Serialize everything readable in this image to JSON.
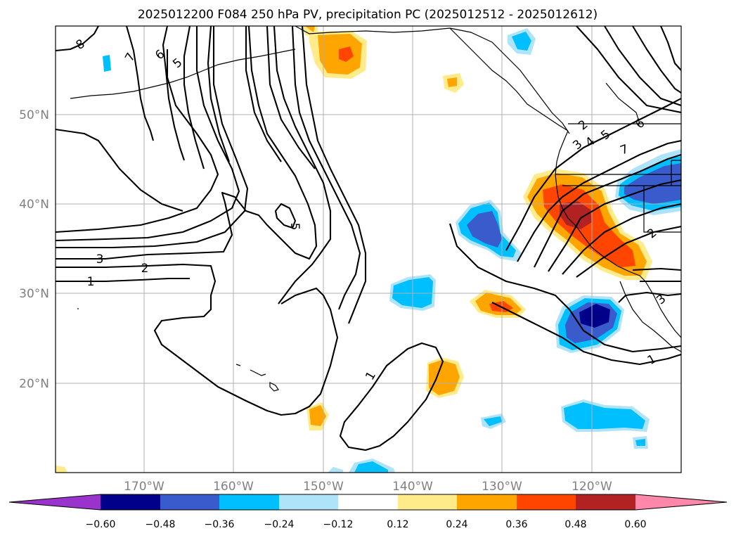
{
  "title": "2025012200 F084 250 hPa PV, precipitation PC (2025012512 - 2025012612)",
  "map": {
    "lat_labels": [
      "50°N",
      "40°N",
      "30°N",
      "20°N"
    ],
    "lon_labels": [
      "170°W",
      "160°W",
      "150°W",
      "140°W",
      "130°W",
      "120°W"
    ],
    "lon_range": [
      180,
      110
    ],
    "lat_range": [
      10,
      60
    ]
  },
  "contour_labels": [
    {
      "text": "8"
    },
    {
      "text": "7"
    },
    {
      "text": "6"
    },
    {
      "text": "5"
    },
    {
      "text": "3"
    },
    {
      "text": "2"
    },
    {
      "text": "1"
    },
    {
      "text": "5"
    },
    {
      "text": "1"
    },
    {
      "text": "2"
    },
    {
      "text": "3"
    },
    {
      "text": "4"
    },
    {
      "text": "5"
    },
    {
      "text": "6"
    },
    {
      "text": "7"
    },
    {
      "text": "2"
    },
    {
      "text": "3"
    },
    {
      "text": "1"
    }
  ],
  "colorbar": {
    "ticks": [
      "−0.60",
      "−0.48",
      "−0.36",
      "−0.24",
      "−0.12",
      "0.12",
      "0.24",
      "0.36",
      "0.48",
      "0.60"
    ],
    "colors": [
      "#9933cc",
      "#00008b",
      "#3a5bcc",
      "#00bfff",
      "#afe3f9",
      "#ffffff",
      "#ffeb8a",
      "#ffa500",
      "#ff4500",
      "#b22222",
      "#ff88aa"
    ]
  }
}
